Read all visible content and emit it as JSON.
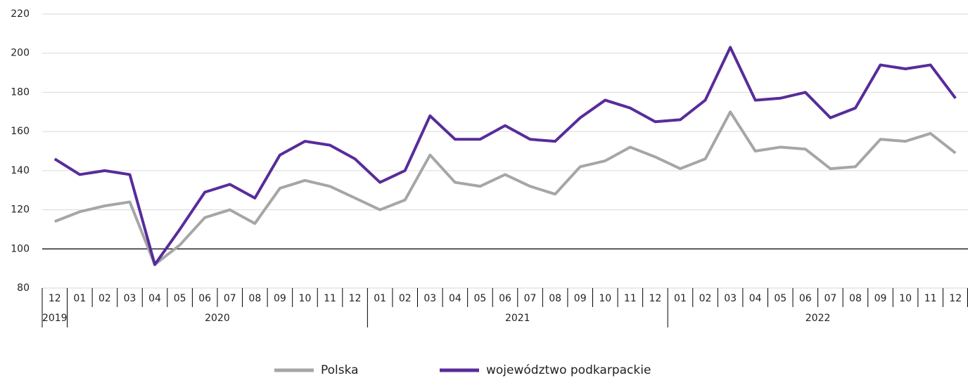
{
  "chart_data": {
    "type": "line",
    "categories": [
      "12",
      "01",
      "02",
      "03",
      "04",
      "05",
      "06",
      "07",
      "08",
      "09",
      "10",
      "11",
      "12",
      "01",
      "02",
      "03",
      "04",
      "05",
      "06",
      "07",
      "08",
      "09",
      "10",
      "11",
      "12",
      "01",
      "02",
      "03",
      "04",
      "05",
      "06",
      "07",
      "08",
      "09",
      "10",
      "11",
      "12"
    ],
    "groups": [
      "2019",
      "2020",
      "2021",
      "2022"
    ],
    "series": [
      {
        "name": "Polska",
        "color": "#a6a6a6",
        "values": [
          114,
          119,
          122,
          124,
          92,
          102,
          116,
          120,
          113,
          131,
          135,
          132,
          126,
          120,
          125,
          148,
          134,
          132,
          138,
          132,
          128,
          142,
          145,
          152,
          147,
          141,
          146,
          170,
          150,
          152,
          151,
          141,
          142,
          156,
          155,
          159,
          149
        ]
      },
      {
        "name": "województwo podkarpackie",
        "color": "#582c9a",
        "values": [
          146,
          138,
          140,
          138,
          92,
          110,
          129,
          133,
          126,
          148,
          155,
          153,
          146,
          134,
          140,
          168,
          156,
          156,
          163,
          156,
          155,
          167,
          176,
          172,
          165,
          166,
          176,
          203,
          176,
          177,
          180,
          167,
          172,
          194,
          192,
          194,
          177
        ]
      }
    ],
    "ylim": [
      80,
      220
    ],
    "yticks": [
      80,
      100,
      120,
      140,
      160,
      180,
      200,
      220
    ],
    "grid": true,
    "baseline": 100
  }
}
